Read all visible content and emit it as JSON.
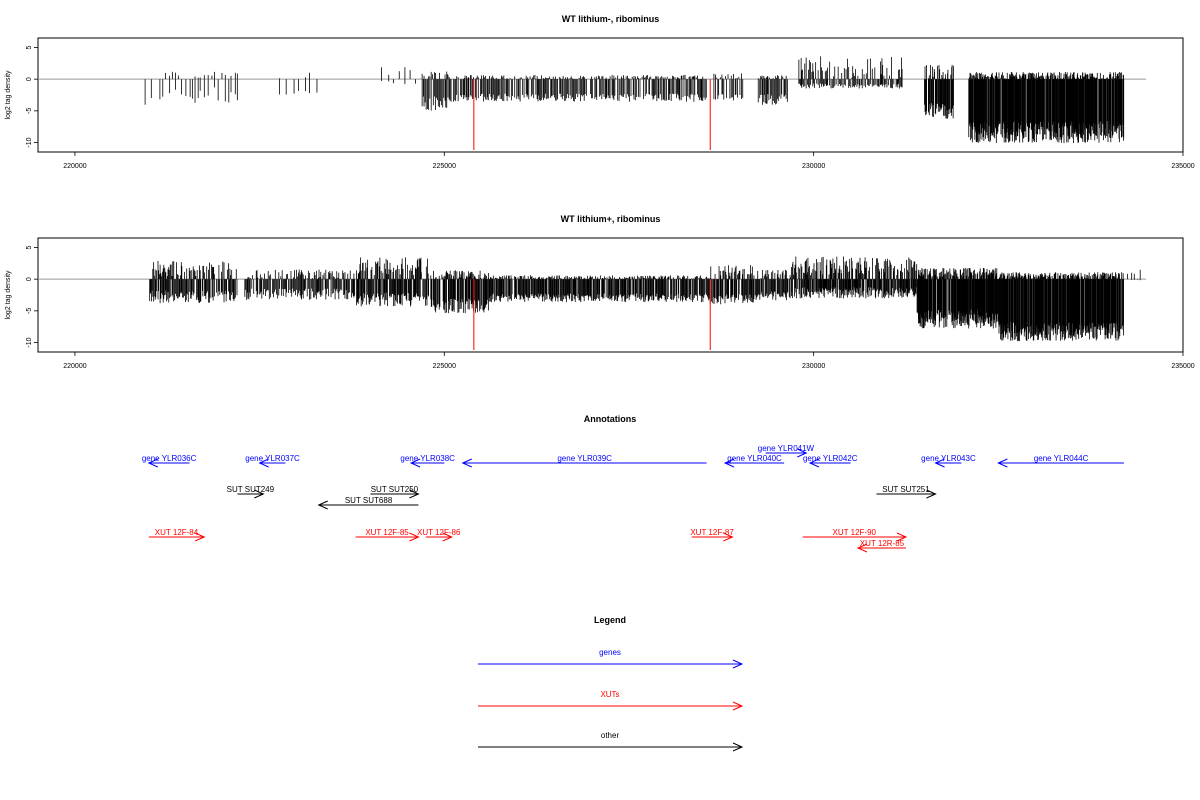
{
  "chart_data": [
    {
      "type": "bar",
      "title": "WT lithium-, ribominus",
      "xlabel": "",
      "ylabel": "log2 tag density",
      "xlim": [
        219500,
        235000
      ],
      "ylim": [
        -11.5,
        6.5
      ],
      "xticks": [
        220000,
        225000,
        230000,
        235000
      ],
      "yticks": [
        5,
        0,
        -5,
        -10
      ],
      "baseline": {
        "from": 219500,
        "to": 234500,
        "color": "#999999"
      },
      "highlight_color": "#FF0000",
      "highlights": [
        {
          "x": 225400,
          "y": -11.5
        },
        {
          "x": 228600,
          "y": -11.5
        }
      ],
      "segments": [
        {
          "from": 220950,
          "to": 221050,
          "pos": [
            1.8,
            1.5
          ],
          "neg": [
            -3.5,
            2.3
          ]
        },
        {
          "from": 221150,
          "to": 222200,
          "pos": [
            0.3,
            1.4
          ],
          "neg": [
            -2.3,
            2.6
          ],
          "step": 45
        },
        {
          "from": 222700,
          "to": 223300,
          "pos": [
            0.2,
            1.2
          ],
          "neg": [
            -2.0,
            1.7
          ],
          "step": 80
        },
        {
          "from": 224150,
          "to": 224650,
          "pos": [
            1.0,
            1.5
          ],
          "neg": [
            -0.5,
            0.5
          ],
          "step": 90
        },
        {
          "from": 224700,
          "to": 225050,
          "pos": [
            0.3,
            1.3
          ],
          "neg": [
            -3.6,
            2.3
          ],
          "step": 14
        },
        {
          "from": 225050,
          "to": 228550,
          "pos": [
            0.2,
            0.7
          ],
          "neg": [
            -2.8,
            1.3
          ],
          "step": 14
        },
        {
          "from": 228650,
          "to": 229050,
          "pos": [
            0.3,
            0.9
          ],
          "neg": [
            -2.6,
            1.5
          ],
          "step": 18
        },
        {
          "from": 229250,
          "to": 229650,
          "pos": [
            0.2,
            0.6
          ],
          "neg": [
            -3.0,
            1.8
          ],
          "step": 12
        },
        {
          "from": 229800,
          "to": 231200,
          "pos": [
            1.2,
            3.5
          ],
          "neg": [
            -1.0,
            0.8
          ],
          "step": 14
        },
        {
          "from": 231500,
          "to": 231900,
          "pos": [
            0.8,
            2.2
          ],
          "neg": [
            -4.8,
            2.5
          ],
          "step": 7
        },
        {
          "from": 232100,
          "to": 234200,
          "pos": [
            0.3,
            1.2
          ],
          "neg": [
            -8.0,
            3.5
          ],
          "step": 5
        }
      ]
    },
    {
      "type": "bar",
      "title": "WT lithium+, ribominus",
      "xlabel": "",
      "ylabel": "log2 tag density",
      "xlim": [
        219500,
        235000
      ],
      "ylim": [
        -11.5,
        6.5
      ],
      "xticks": [
        220000,
        225000,
        230000,
        235000
      ],
      "yticks": [
        5,
        0,
        -5,
        -10
      ],
      "baseline": {
        "from": 219500,
        "to": 234500,
        "color": "#999999"
      },
      "highlight_color": "#FF0000",
      "highlights": [
        {
          "x": 225400,
          "y": -11.5
        },
        {
          "x": 228600,
          "y": -11.5
        }
      ],
      "segments": [
        {
          "from": 221000,
          "to": 222200,
          "pos": [
            1.2,
            2.6
          ],
          "neg": [
            -2.6,
            2.0
          ],
          "step": 10
        },
        {
          "from": 222300,
          "to": 223800,
          "pos": [
            0.4,
            1.6
          ],
          "neg": [
            -2.2,
            1.8
          ],
          "step": 12
        },
        {
          "from": 223800,
          "to": 224800,
          "pos": [
            1.5,
            2.8
          ],
          "neg": [
            -3.0,
            2.2
          ],
          "step": 9
        },
        {
          "from": 224800,
          "to": 225600,
          "pos": [
            0.5,
            1.4
          ],
          "neg": [
            -4.0,
            2.3
          ],
          "step": 8
        },
        {
          "from": 225600,
          "to": 228600,
          "pos": [
            0.2,
            0.6
          ],
          "neg": [
            -2.8,
            1.4
          ],
          "step": 9
        },
        {
          "from": 228600,
          "to": 229200,
          "pos": [
            1.0,
            1.8
          ],
          "neg": [
            -3.0,
            1.6
          ],
          "step": 9
        },
        {
          "from": 229200,
          "to": 229700,
          "pos": [
            0.5,
            1.4
          ],
          "neg": [
            -2.5,
            1.4
          ],
          "step": 10
        },
        {
          "from": 229700,
          "to": 231400,
          "pos": [
            1.5,
            3.0
          ],
          "neg": [
            -2.0,
            1.8
          ],
          "step": 8
        },
        {
          "from": 231400,
          "to": 232500,
          "pos": [
            0.8,
            1.4
          ],
          "neg": [
            -6.0,
            3.0
          ],
          "step": 5
        },
        {
          "from": 232500,
          "to": 234200,
          "pos": [
            0.4,
            1.0
          ],
          "neg": [
            -8.0,
            3.0
          ],
          "step": 5
        },
        {
          "from": 234250,
          "to": 234450,
          "pos": [
            1.0,
            0.8
          ],
          "neg": [
            -0.1,
            0.1
          ],
          "step": 50
        }
      ]
    }
  ],
  "annotations": {
    "title": "Annotations",
    "xlim": [
      219500,
      235000
    ],
    "genes": [
      {
        "label": "gene YLR036C",
        "from": 221550,
        "to": 221000,
        "row": 0
      },
      {
        "label": "gene YLR037C",
        "from": 222850,
        "to": 222500,
        "row": 0
      },
      {
        "label": "gene YLR038C",
        "from": 225000,
        "to": 224550,
        "row": 0
      },
      {
        "label": "gene YLR039C",
        "from": 228550,
        "to": 225250,
        "row": 0
      },
      {
        "label": "gene YLR040C",
        "from": 229600,
        "to": 228800,
        "row": 0
      },
      {
        "label": "gene YLR041W",
        "from": 229350,
        "to": 229900,
        "row": -1
      },
      {
        "label": "gene YLR042C",
        "from": 230500,
        "to": 229950,
        "row": 0
      },
      {
        "label": "gene YLR043C",
        "from": 232000,
        "to": 231650,
        "row": 0
      },
      {
        "label": "gene YLR044C",
        "from": 234200,
        "to": 232500,
        "row": 0
      }
    ],
    "other": [
      {
        "label": "SUT SUT249",
        "from": 222200,
        "to": 222550,
        "row": 1
      },
      {
        "label": "SUT SUT250",
        "from": 224000,
        "to": 224650,
        "row": 1
      },
      {
        "label": "SUT SUT688",
        "from": 224650,
        "to": 223300,
        "row": 2
      },
      {
        "label": "SUT SUT251",
        "from": 230850,
        "to": 231650,
        "row": 1
      }
    ],
    "xuts": [
      {
        "label": "XUT 12F-84",
        "from": 221000,
        "to": 221750,
        "row": 3
      },
      {
        "label": "XUT 12F-85",
        "from": 223800,
        "to": 224650,
        "row": 3
      },
      {
        "label": "XUT 12F-86",
        "from": 224750,
        "to": 225100,
        "row": 3
      },
      {
        "label": "XUT 12F-87",
        "from": 228350,
        "to": 228900,
        "row": 3
      },
      {
        "label": "XUT 12F-90",
        "from": 229850,
        "to": 231250,
        "row": 3
      },
      {
        "label": "XUT 12R-85",
        "from": 231250,
        "to": 230600,
        "row": 4
      }
    ]
  },
  "legend": {
    "title": "Legend",
    "items": [
      {
        "label": "genes",
        "color": "#0000FF"
      },
      {
        "label": "XUTs",
        "color": "#FF0000"
      },
      {
        "label": "other",
        "color": "#000000"
      }
    ]
  },
  "colors": {
    "genes": "#0000FF",
    "xuts": "#FF0000",
    "other": "#000000",
    "bars": "#000000"
  }
}
